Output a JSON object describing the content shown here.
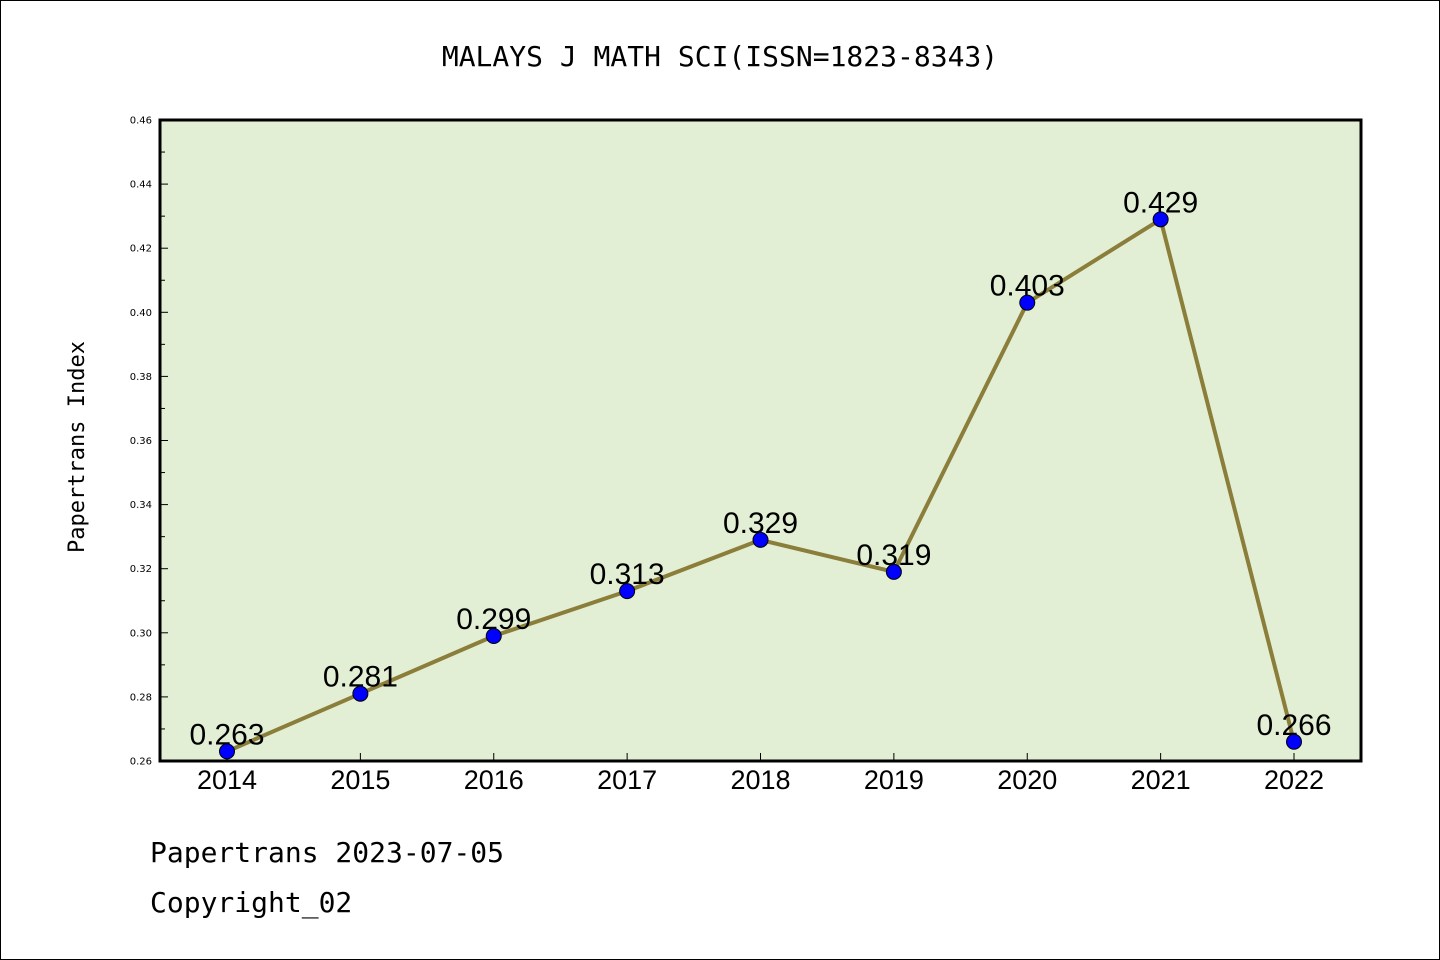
{
  "chart_data": {
    "type": "line",
    "title": "MALAYS J MATH SCI(ISSN=1823-8343)",
    "xlabel": "",
    "ylabel": "Papertrans Index",
    "categories": [
      "2014",
      "2015",
      "2016",
      "2017",
      "2018",
      "2019",
      "2020",
      "2021",
      "2022"
    ],
    "values": [
      0.263,
      0.281,
      0.299,
      0.313,
      0.329,
      0.319,
      0.403,
      0.429,
      0.266
    ],
    "data_labels": [
      "0.263",
      "0.281",
      "0.299",
      "0.313",
      "0.329",
      "0.319",
      "0.403",
      "0.429",
      "0.266"
    ],
    "ylim": [
      0.26,
      0.46
    ],
    "yticks": [
      0.26,
      0.28,
      0.3,
      0.32,
      0.34,
      0.36,
      0.38,
      0.4,
      0.42,
      0.44,
      0.46
    ],
    "ytick_labels": [
      "0.26",
      "0.28",
      "0.30",
      "0.32",
      "0.34",
      "0.36",
      "0.38",
      "0.40",
      "0.42",
      "0.44",
      "0.46"
    ],
    "grid": false,
    "legend": "none",
    "colors": {
      "plot_background": "#e2efd4",
      "line": "#8b7d3a",
      "marker": "#0000ff"
    }
  },
  "footer": {
    "date_line": "Papertrans 2023-07-05",
    "copyright_line": "Copyright_02"
  }
}
